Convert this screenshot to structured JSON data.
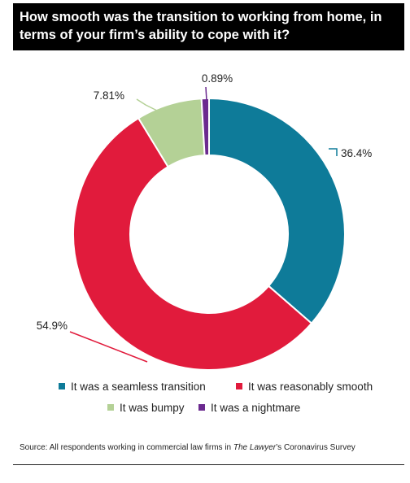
{
  "chart_data": {
    "type": "pie",
    "title": "How smooth was the transition to working from home, in terms of your firm’s ability to cope with it?",
    "categories": [
      "It was a seamless transition",
      "It was reasonably smooth",
      "It was bumpy",
      "It was a nightmare"
    ],
    "values": [
      36.4,
      54.9,
      7.81,
      0.89
    ],
    "value_labels": [
      "36.4%",
      "54.9%",
      "7.81%",
      "0.89%"
    ],
    "colors": [
      "#0e7b99",
      "#e11b3c",
      "#b4d196",
      "#6b2a8f"
    ],
    "donut": true,
    "legend_position": "bottom"
  },
  "source": {
    "prefix": "Source: All respondents working in commercial law firms in ",
    "publication": "The Lawyer",
    "suffix": "’s Coronavirus Survey"
  }
}
